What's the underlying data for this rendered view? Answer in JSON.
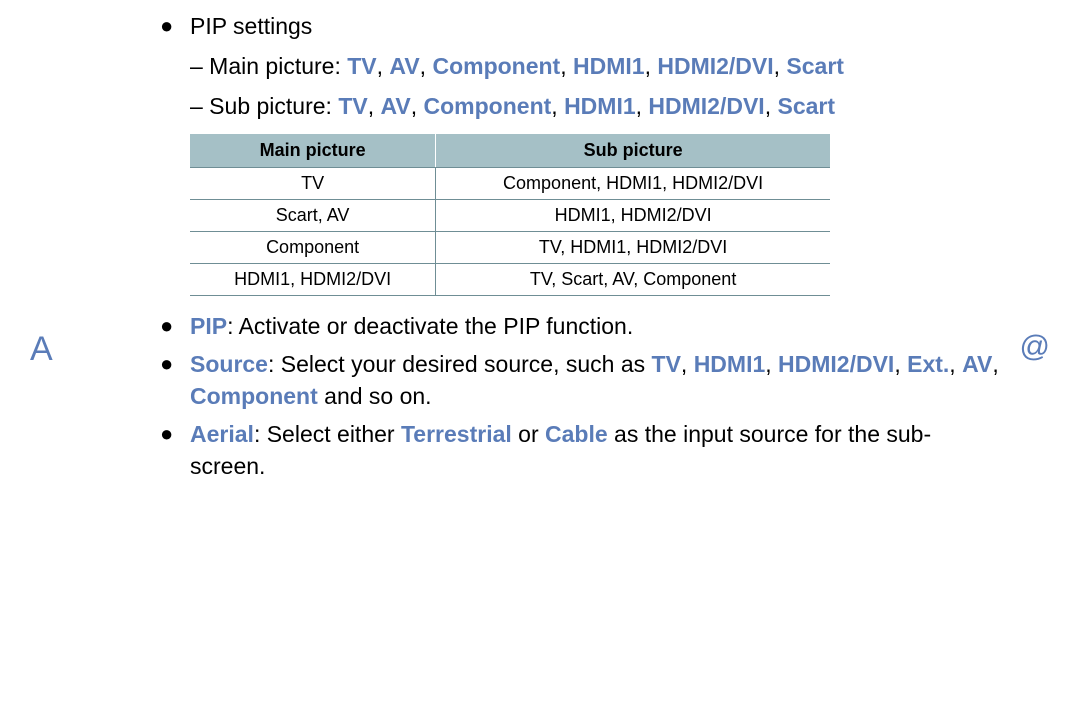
{
  "colors": {
    "blue": "#5a7cb8",
    "table_header_bg": "#a5c0c6",
    "table_border": "#6f8e95",
    "body_text": "#000000",
    "background": "#ffffff"
  },
  "side": {
    "left": "A",
    "right": "@"
  },
  "pip_settings_title": "PIP settings",
  "main_picture": {
    "prefix": "– Main picture: ",
    "items": [
      "TV",
      "AV",
      "Component",
      "HDMI1",
      "HDMI2/DVI",
      "Scart"
    ],
    "sep": ", "
  },
  "sub_picture": {
    "prefix": "– Sub picture: ",
    "items": [
      "TV",
      "AV",
      "Component",
      "HDMI1",
      "HDMI2/DVI",
      "Scart"
    ],
    "sep": ", "
  },
  "table": {
    "columns": [
      "Main picture",
      "Sub picture"
    ],
    "column_widths": [
      "240px",
      "400px"
    ],
    "rows": [
      [
        "TV",
        "Component, HDMI1, HDMI2/DVI"
      ],
      [
        "Scart, AV",
        "HDMI1, HDMI2/DVI"
      ],
      [
        "Component",
        "TV, HDMI1, HDMI2/DVI"
      ],
      [
        "HDMI1, HDMI2/DVI",
        "TV, Scart, AV, Component"
      ]
    ]
  },
  "bullet_pip": {
    "label": "PIP",
    "text": ": Activate or deactivate the PIP function."
  },
  "bullet_source": {
    "label": "Source",
    "text1": ": Select your desired source, such as ",
    "items": [
      "TV",
      "HDMI1",
      "HDMI2/DVI",
      "Ext.",
      "AV",
      "Component"
    ],
    "sep": ", ",
    "text2": " and so on."
  },
  "bullet_aerial": {
    "label": "Aerial",
    "text1": ": Select either ",
    "opt1": "Terrestrial",
    "mid": " or ",
    "opt2": "Cable",
    "text2": " as the input source for the sub-screen."
  }
}
